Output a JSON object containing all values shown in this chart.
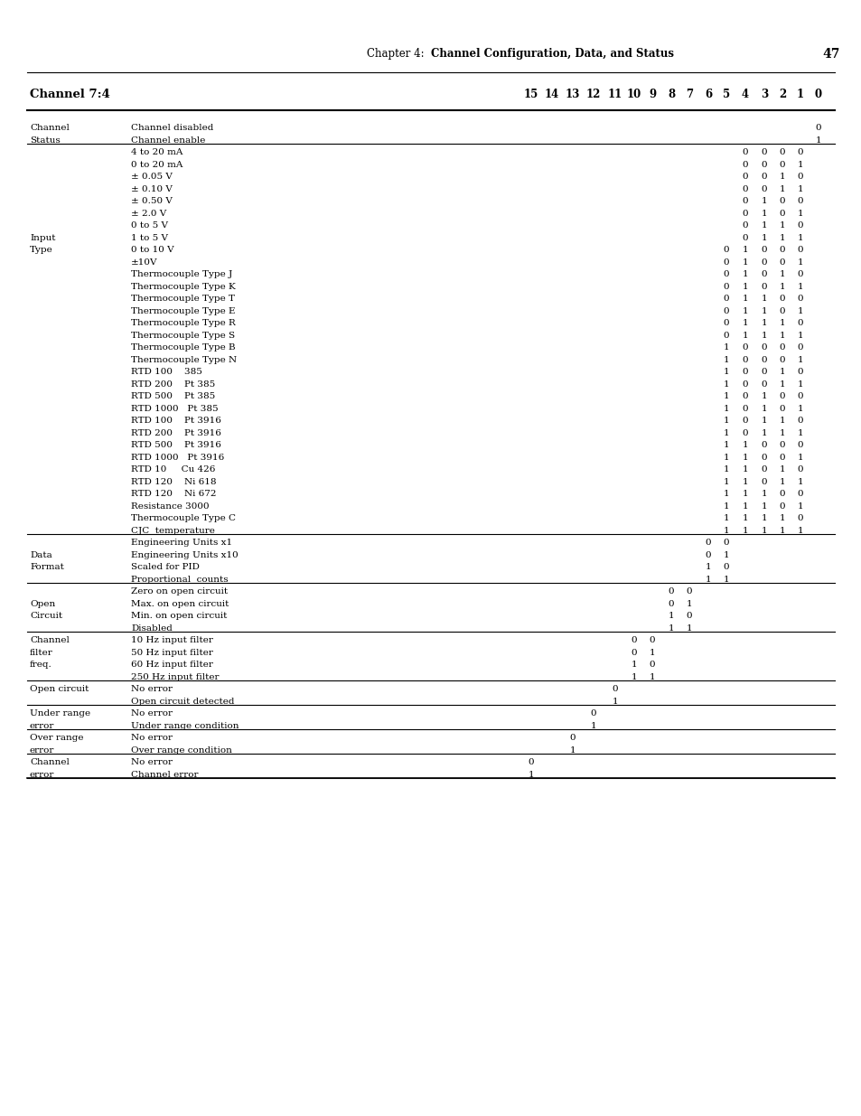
{
  "page_header_plain": "Chapter 4:  ",
  "page_header_bold": "Channel Configuration, Data, and Status",
  "page_number": "47",
  "table_header_col1": "Channel 7:4",
  "bit_labels": [
    [
      "15",
      0.6
    ],
    [
      "14",
      0.628
    ],
    [
      "13",
      0.656
    ],
    [
      "12",
      0.684
    ],
    [
      "11",
      0.712
    ],
    [
      "10",
      0.738
    ],
    [
      "9",
      0.762
    ],
    [
      "8",
      0.786
    ],
    [
      "7",
      0.81
    ],
    [
      "6",
      0.834
    ],
    [
      "5",
      0.858
    ],
    [
      "4",
      0.882
    ],
    [
      "3",
      0.904
    ],
    [
      "2",
      0.924
    ],
    [
      "1",
      0.944
    ],
    [
      "0",
      0.964
    ]
  ],
  "rows": [
    {
      "col1": "Channel",
      "col2": "Channel disabled",
      "bits": {
        "0": "0"
      },
      "hline_after": false
    },
    {
      "col1": "Status",
      "col2": "Channel enable",
      "bits": {
        "0": "1"
      },
      "hline_after": true
    },
    {
      "col1": "",
      "col2": "4 to 20 mA",
      "bits": {
        "4": "0",
        "3": "0",
        "2": "0",
        "1": "0"
      },
      "hline_after": false
    },
    {
      "col1": "",
      "col2": "0 to 20 mA",
      "bits": {
        "4": "0",
        "3": "0",
        "2": "0",
        "1": "1"
      },
      "hline_after": false
    },
    {
      "col1": "",
      "col2": "± 0.05 V",
      "bits": {
        "4": "0",
        "3": "0",
        "2": "1",
        "1": "0"
      },
      "hline_after": false
    },
    {
      "col1": "",
      "col2": "± 0.10 V",
      "bits": {
        "4": "0",
        "3": "0",
        "2": "1",
        "1": "1"
      },
      "hline_after": false
    },
    {
      "col1": "",
      "col2": "± 0.50 V",
      "bits": {
        "4": "0",
        "3": "1",
        "2": "0",
        "1": "0"
      },
      "hline_after": false
    },
    {
      "col1": "",
      "col2": "± 2.0 V",
      "bits": {
        "4": "0",
        "3": "1",
        "2": "0",
        "1": "1"
      },
      "hline_after": false
    },
    {
      "col1": "",
      "col2": "0 to 5 V",
      "bits": {
        "4": "0",
        "3": "1",
        "2": "1",
        "1": "0"
      },
      "hline_after": false
    },
    {
      "col1": "Input",
      "col2": "1 to 5 V",
      "bits": {
        "4": "0",
        "3": "1",
        "2": "1",
        "1": "1"
      },
      "hline_after": false
    },
    {
      "col1": "Type",
      "col2": "0 to 10 V",
      "bits": {
        "5": "0",
        "4": "1",
        "3": "0",
        "2": "0",
        "1": "0"
      },
      "hline_after": false
    },
    {
      "col1": "",
      "col2": "±10V",
      "bits": {
        "5": "0",
        "4": "1",
        "3": "0",
        "2": "0",
        "1": "1"
      },
      "hline_after": false
    },
    {
      "col1": "",
      "col2": "Thermocouple Type J",
      "bits": {
        "5": "0",
        "4": "1",
        "3": "0",
        "2": "1",
        "1": "0"
      },
      "hline_after": false
    },
    {
      "col1": "",
      "col2": "Thermocouple Type K",
      "bits": {
        "5": "0",
        "4": "1",
        "3": "0",
        "2": "1",
        "1": "1"
      },
      "hline_after": false
    },
    {
      "col1": "",
      "col2": "Thermocouple Type T",
      "bits": {
        "5": "0",
        "4": "1",
        "3": "1",
        "2": "0",
        "1": "0"
      },
      "hline_after": false
    },
    {
      "col1": "",
      "col2": "Thermocouple Type E",
      "bits": {
        "5": "0",
        "4": "1",
        "3": "1",
        "2": "0",
        "1": "1"
      },
      "hline_after": false
    },
    {
      "col1": "",
      "col2": "Thermocouple Type R",
      "bits": {
        "5": "0",
        "4": "1",
        "3": "1",
        "2": "1",
        "1": "0"
      },
      "hline_after": false
    },
    {
      "col1": "",
      "col2": "Thermocouple Type S",
      "bits": {
        "5": "0",
        "4": "1",
        "3": "1",
        "2": "1",
        "1": "1"
      },
      "hline_after": false
    },
    {
      "col1": "",
      "col2": "Thermocouple Type B",
      "bits": {
        "5": "1",
        "4": "0",
        "3": "0",
        "2": "0",
        "1": "0"
      },
      "hline_after": false
    },
    {
      "col1": "",
      "col2": "Thermocouple Type N",
      "bits": {
        "5": "1",
        "4": "0",
        "3": "0",
        "2": "0",
        "1": "1"
      },
      "hline_after": false
    },
    {
      "col1": "",
      "col2": "RTD 100    385",
      "bits": {
        "5": "1",
        "4": "0",
        "3": "0",
        "2": "1",
        "1": "0"
      },
      "hline_after": false
    },
    {
      "col1": "",
      "col2": "RTD 200    Pt 385",
      "bits": {
        "5": "1",
        "4": "0",
        "3": "0",
        "2": "1",
        "1": "1"
      },
      "hline_after": false
    },
    {
      "col1": "",
      "col2": "RTD 500    Pt 385",
      "bits": {
        "5": "1",
        "4": "0",
        "3": "1",
        "2": "0",
        "1": "0"
      },
      "hline_after": false
    },
    {
      "col1": "",
      "col2": "RTD 1000   Pt 385",
      "bits": {
        "5": "1",
        "4": "0",
        "3": "1",
        "2": "0",
        "1": "1"
      },
      "hline_after": false
    },
    {
      "col1": "",
      "col2": "RTD 100    Pt 3916",
      "bits": {
        "5": "1",
        "4": "0",
        "3": "1",
        "2": "1",
        "1": "0"
      },
      "hline_after": false
    },
    {
      "col1": "",
      "col2": "RTD 200    Pt 3916",
      "bits": {
        "5": "1",
        "4": "0",
        "3": "1",
        "2": "1",
        "1": "1"
      },
      "hline_after": false
    },
    {
      "col1": "",
      "col2": "RTD 500    Pt 3916",
      "bits": {
        "5": "1",
        "4": "1",
        "3": "0",
        "2": "0",
        "1": "0"
      },
      "hline_after": false
    },
    {
      "col1": "",
      "col2": "RTD 1000   Pt 3916",
      "bits": {
        "5": "1",
        "4": "1",
        "3": "0",
        "2": "0",
        "1": "1"
      },
      "hline_after": false
    },
    {
      "col1": "",
      "col2": "RTD 10     Cu 426",
      "bits": {
        "5": "1",
        "4": "1",
        "3": "0",
        "2": "1",
        "1": "0"
      },
      "hline_after": false
    },
    {
      "col1": "",
      "col2": "RTD 120    Ni 618",
      "bits": {
        "5": "1",
        "4": "1",
        "3": "0",
        "2": "1",
        "1": "1"
      },
      "hline_after": false
    },
    {
      "col1": "",
      "col2": "RTD 120    Ni 672",
      "bits": {
        "5": "1",
        "4": "1",
        "3": "1",
        "2": "0",
        "1": "0"
      },
      "hline_after": false
    },
    {
      "col1": "",
      "col2": "Resistance 3000",
      "bits": {
        "5": "1",
        "4": "1",
        "3": "1",
        "2": "0",
        "1": "1"
      },
      "hline_after": false
    },
    {
      "col1": "",
      "col2": "Thermocouple Type C",
      "bits": {
        "5": "1",
        "4": "1",
        "3": "1",
        "2": "1",
        "1": "0"
      },
      "hline_after": false
    },
    {
      "col1": "",
      "col2": "CJC  temperature",
      "bits": {
        "5": "1",
        "4": "1",
        "3": "1",
        "2": "1",
        "1": "1"
      },
      "hline_after": true
    },
    {
      "col1": "",
      "col2": "Engineering Units x1",
      "bits": {
        "6": "0",
        "5": "0"
      },
      "hline_after": false
    },
    {
      "col1": "Data",
      "col2": "Engineering Units x10",
      "bits": {
        "6": "0",
        "5": "1"
      },
      "hline_after": false
    },
    {
      "col1": "Format",
      "col2": "Scaled for PID",
      "bits": {
        "6": "1",
        "5": "0"
      },
      "hline_after": false
    },
    {
      "col1": "",
      "col2": "Proportional  counts",
      "bits": {
        "6": "1",
        "5": "1"
      },
      "hline_after": true
    },
    {
      "col1": "",
      "col2": "Zero on open circuit",
      "bits": {
        "8": "0",
        "7": "0"
      },
      "hline_after": false
    },
    {
      "col1": "Open",
      "col2": "Max. on open circuit",
      "bits": {
        "8": "0",
        "7": "1"
      },
      "hline_after": false
    },
    {
      "col1": "Circuit",
      "col2": "Min. on open circuit",
      "bits": {
        "8": "1",
        "7": "0"
      },
      "hline_after": false
    },
    {
      "col1": "",
      "col2": "Disabled",
      "bits": {
        "8": "1",
        "7": "1"
      },
      "hline_after": true
    },
    {
      "col1": "Channel",
      "col2": "10 Hz input filter",
      "bits": {
        "10": "0",
        "9": "0"
      },
      "hline_after": false
    },
    {
      "col1": "filter",
      "col2": "50 Hz input filter",
      "bits": {
        "10": "0",
        "9": "1"
      },
      "hline_after": false
    },
    {
      "col1": "freq.",
      "col2": "60 Hz input filter",
      "bits": {
        "10": "1",
        "9": "0"
      },
      "hline_after": false
    },
    {
      "col1": "",
      "col2": "250 Hz input filter",
      "bits": {
        "10": "1",
        "9": "1"
      },
      "hline_after": true
    },
    {
      "col1": "Open circuit",
      "col2": "No error",
      "bits": {
        "11": "0"
      },
      "hline_after": false
    },
    {
      "col1": "",
      "col2": "Open circuit detected",
      "bits": {
        "11": "1"
      },
      "hline_after": true
    },
    {
      "col1": "Under range",
      "col2": "No error",
      "bits": {
        "12": "0"
      },
      "hline_after": false
    },
    {
      "col1": "error",
      "col2": "Under range condition",
      "bits": {
        "12": "1"
      },
      "hline_after": true
    },
    {
      "col1": "Over range",
      "col2": "No error",
      "bits": {
        "13": "0"
      },
      "hline_after": false
    },
    {
      "col1": "error",
      "col2": "Over range condition",
      "bits": {
        "13": "1"
      },
      "hline_after": true
    },
    {
      "col1": "Channel",
      "col2": "No error",
      "bits": {
        "15": "0"
      },
      "hline_after": false
    },
    {
      "col1": "error",
      "col2": "Channel error",
      "bits": {
        "15": "1"
      },
      "hline_after": true
    }
  ]
}
